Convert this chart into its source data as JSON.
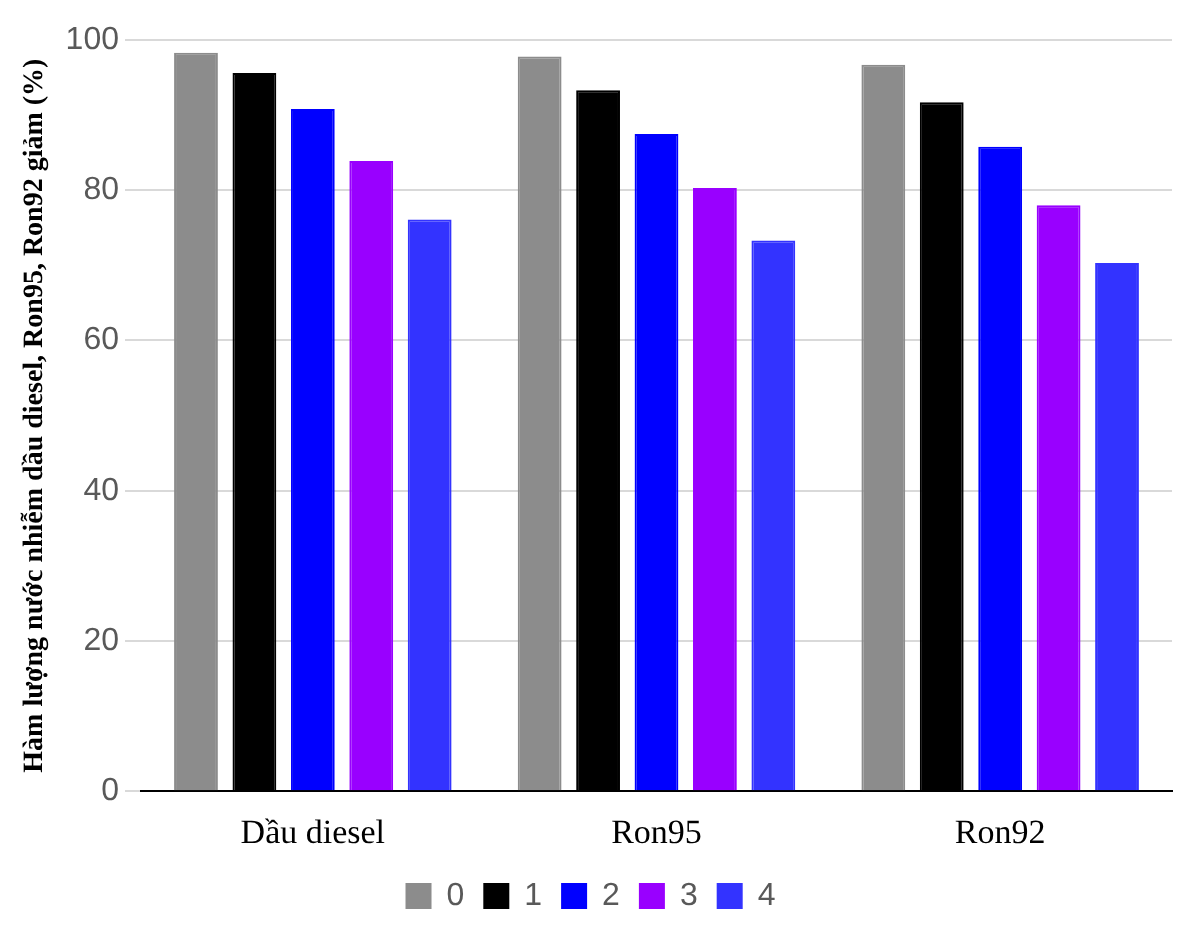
{
  "chart_data": {
    "type": "bar",
    "ylabel": "Hàm lượng nước nhiễm dầu diesel, Ron95, Ron92 giảm (%)",
    "categories": [
      "Dầu diesel",
      "Ron95",
      "Ron92"
    ],
    "series": [
      {
        "name": "0",
        "color": "#8c8c8c",
        "values": [
          98.3,
          97.8,
          96.7
        ]
      },
      {
        "name": "1",
        "color": "#000000",
        "values": [
          95.6,
          93.3,
          91.7
        ]
      },
      {
        "name": "2",
        "color": "#0000ff",
        "values": [
          90.8,
          87.5,
          85.8
        ]
      },
      {
        "name": "3",
        "color": "#9900ff",
        "values": [
          83.9,
          80.3,
          78
        ]
      },
      {
        "name": "4",
        "color": "#3333ff",
        "values": [
          76.1,
          73.3,
          70.3
        ]
      }
    ],
    "ylim": [
      0,
      100
    ],
    "yticks": [
      0,
      20,
      40,
      60,
      80,
      100
    ],
    "grid": "y",
    "legend": "bottom"
  }
}
